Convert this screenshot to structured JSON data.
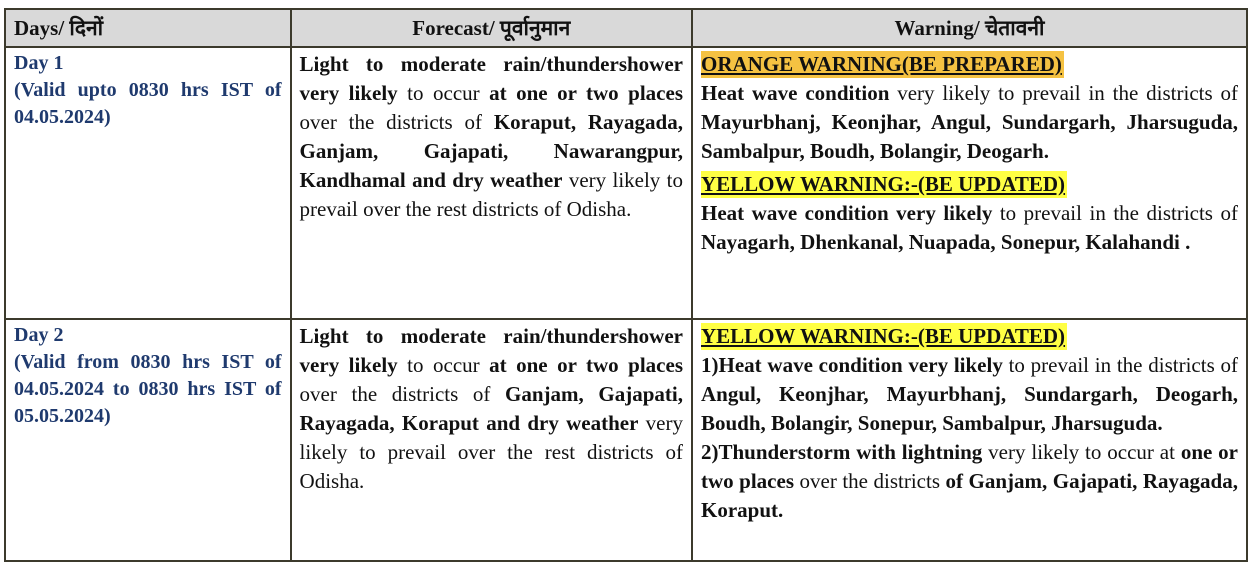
{
  "headers": {
    "days": "Days/  दिनों",
    "forecast": "Forecast/ पूर्वानुमान",
    "warning": "Warning/ चेतावनी"
  },
  "colors": {
    "day_text": "#1f3a6e",
    "orange_highlight": "#f5c242",
    "yellow_highlight": "#ffff44",
    "header_bg": "#d9d9d9"
  },
  "rows": [
    {
      "day": {
        "title": "Day 1",
        "validity": "(Valid  upto 0830 hrs IST of 04.05.2024)"
      },
      "forecast": [
        {
          "t": "Light to moderate rain/thundershower very likely",
          "b": true
        },
        {
          "t": " to occur ",
          "b": false
        },
        {
          "t": "at one or two places",
          "b": true
        },
        {
          "t": " over the districts of ",
          "b": false
        },
        {
          "t": "Koraput, Rayagada, Ganjam, Gajapati, Nawarangpur, Kandhamal and dry weather",
          "b": true
        },
        {
          "t": " very likely to prevail over the rest districts of Odisha.",
          "b": false
        }
      ],
      "warnings": [
        {
          "level": "orange",
          "heading": "ORANGE WARNING(BE PREPARED)",
          "paragraphs": [
            [
              {
                "t": "Heat wave condition",
                "b": true
              },
              {
                "t": "  very likely to prevail in the districts of ",
                "b": false
              },
              {
                "t": "Mayurbhanj, Keonjhar, Angul, Sundargarh, Jharsuguda, Sambalpur, Boudh, Bolangir, Deogarh.",
                "b": true
              }
            ]
          ]
        },
        {
          "level": "yellow",
          "heading": "YELLOW WARNING:-(BE UPDATED)",
          "paragraphs": [
            [
              {
                "t": "Heat wave condition very likely",
                "b": true
              },
              {
                "t": " to prevail in the districts of ",
                "b": false
              },
              {
                "t": "Nayagarh, Dhenkanal, Nuapada, Sonepur, Kalahandi .",
                "b": true
              }
            ]
          ]
        }
      ]
    },
    {
      "day": {
        "title": "Day 2",
        "validity": "(Valid from 0830 hrs IST of 04.05.2024 to 0830 hrs IST of 05.05.2024)"
      },
      "forecast": [
        {
          "t": "Light to moderate rain/thundershower very likely",
          "b": true
        },
        {
          "t": " to occur ",
          "b": false
        },
        {
          "t": "at one or two places",
          "b": true
        },
        {
          "t": " over the districts of ",
          "b": false
        },
        {
          "t": "Ganjam, Gajapati, Rayagada, Koraput and dry weather",
          "b": true
        },
        {
          "t": "  very likely to prevail over the rest districts of Odisha.",
          "b": false
        }
      ],
      "warnings": [
        {
          "level": "yellow",
          "heading": "YELLOW WARNING:-(BE UPDATED)",
          "paragraphs": [
            [
              {
                "t": "1)Heat wave condition very likely",
                "b": true
              },
              {
                "t": " to prevail in the districts of ",
                "b": false
              },
              {
                "t": "Angul, Keonjhar, Mayurbhanj, Sundargarh, Deogarh, Boudh, Bolangir, Sonepur, Sambalpur, Jharsuguda.",
                "b": true
              }
            ],
            [
              {
                "t": "2)Thunderstorm with lightning",
                "b": true
              },
              {
                "t": " very likely to occur  at ",
                "b": false
              },
              {
                "t": "one or two places",
                "b": true
              },
              {
                "t": " over the districts ",
                "b": false
              },
              {
                "t": "of Ganjam, Gajapati, Rayagada, Koraput.",
                "b": true
              }
            ]
          ]
        }
      ]
    }
  ]
}
